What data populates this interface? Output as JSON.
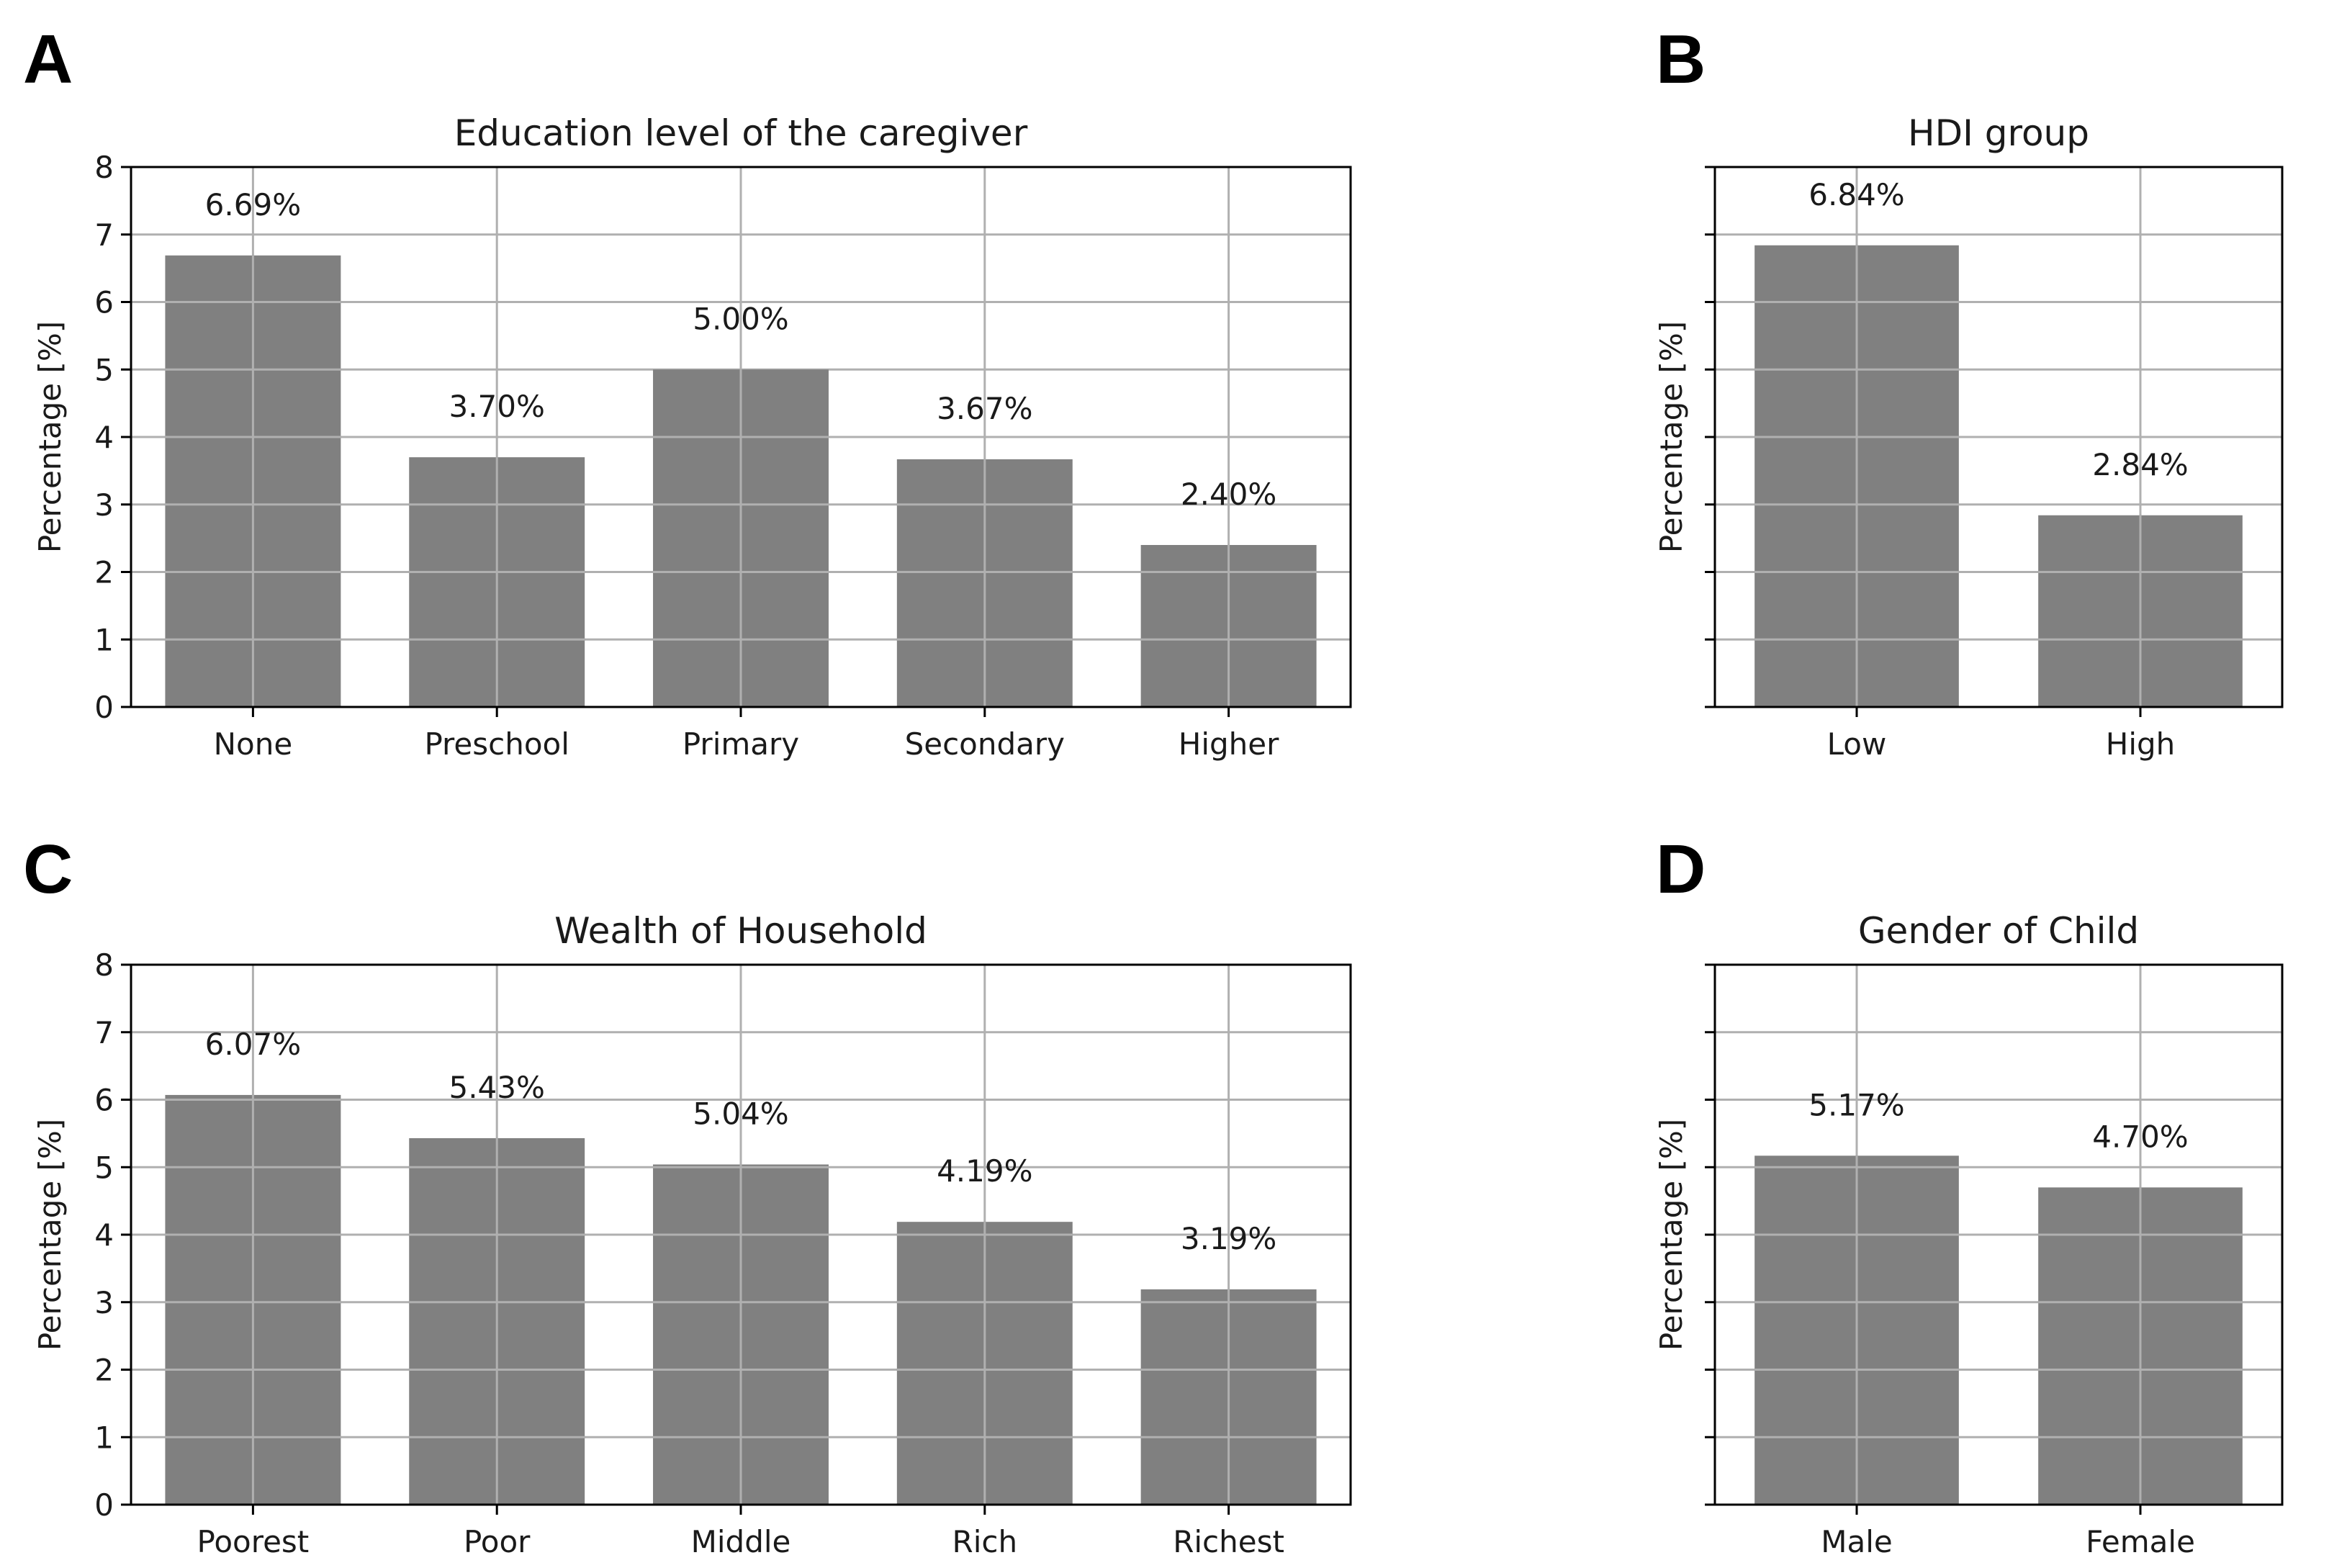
{
  "chart_data": [
    {
      "panel": "A",
      "type": "bar",
      "title": "Education level of the caregiver",
      "xlabel": "",
      "ylabel": "Percentage [%]",
      "ylim": [
        0,
        8
      ],
      "yticks": [
        0,
        1,
        2,
        3,
        4,
        5,
        6,
        7,
        8
      ],
      "show_ytick_labels": true,
      "grid": true,
      "color": "#808080",
      "categories": [
        "None",
        "Preschool",
        "Primary",
        "Secondary",
        "Higher"
      ],
      "values": [
        6.69,
        3.7,
        5.0,
        3.67,
        2.4
      ],
      "labels": [
        "6.69%",
        "3.70%",
        "5.00%",
        "3.67%",
        "2.40%"
      ]
    },
    {
      "panel": "B",
      "type": "bar",
      "title": "HDI group",
      "xlabel": "",
      "ylabel": "Percentage [%]",
      "ylim": [
        0,
        8
      ],
      "yticks": [
        0,
        1,
        2,
        3,
        4,
        5,
        6,
        7,
        8
      ],
      "show_ytick_labels": false,
      "grid": true,
      "color": "#808080",
      "categories": [
        "Low",
        "High"
      ],
      "values": [
        6.84,
        2.84
      ],
      "labels": [
        "6.84%",
        "2.84%"
      ]
    },
    {
      "panel": "C",
      "type": "bar",
      "title": "Wealth of Household",
      "xlabel": "",
      "ylabel": "Percentage [%]",
      "ylim": [
        0,
        8
      ],
      "yticks": [
        0,
        1,
        2,
        3,
        4,
        5,
        6,
        7,
        8
      ],
      "show_ytick_labels": true,
      "grid": true,
      "color": "#808080",
      "categories": [
        "Poorest",
        "Poor",
        "Middle",
        "Rich",
        "Richest"
      ],
      "values": [
        6.07,
        5.43,
        5.04,
        4.19,
        3.19
      ],
      "labels": [
        "6.07%",
        "5.43%",
        "5.04%",
        "4.19%",
        "3.19%"
      ]
    },
    {
      "panel": "D",
      "type": "bar",
      "title": "Gender of Child",
      "xlabel": "",
      "ylabel": "Percentage [%]",
      "ylim": [
        0,
        8
      ],
      "yticks": [
        0,
        1,
        2,
        3,
        4,
        5,
        6,
        7,
        8
      ],
      "show_ytick_labels": false,
      "grid": true,
      "color": "#808080",
      "categories": [
        "Male",
        "Female"
      ],
      "values": [
        5.17,
        4.7
      ],
      "labels": [
        "5.17%",
        "4.70%"
      ]
    }
  ]
}
